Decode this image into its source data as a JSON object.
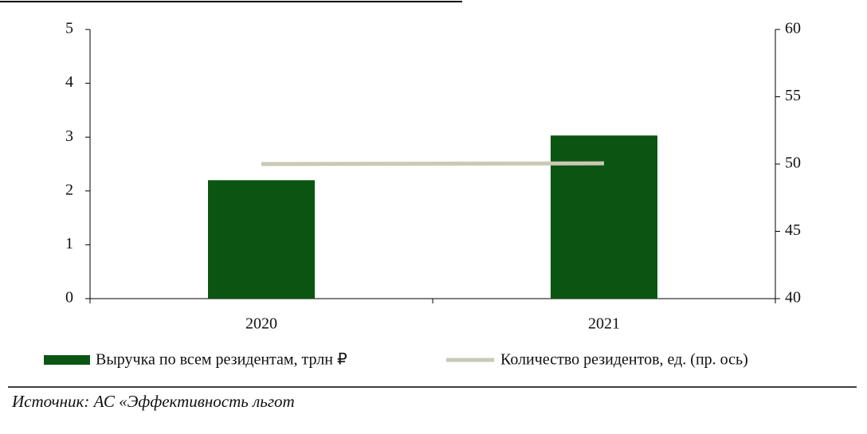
{
  "chart_data": {
    "type": "bar",
    "categories": [
      "2020",
      "2021"
    ],
    "series": [
      {
        "name": "Выручка по всем резидентам, трлн ₽",
        "color": "#0b5512",
        "values": [
          2.2,
          3.03
        ],
        "kind": "bar"
      },
      {
        "name": "Количество резидентов, ед. (пр. ось)",
        "color": "#c9c9b5",
        "values": [
          50,
          50.05
        ],
        "kind": "line",
        "axis": "y2"
      }
    ],
    "ylim": [
      0,
      5
    ],
    "yticks": [
      0,
      1,
      2,
      3,
      4,
      5
    ],
    "y2lim": [
      40,
      60
    ],
    "y2ticks": [
      40,
      45,
      50,
      55,
      60
    ],
    "source": "Источник: АС «Эффективность льгот"
  }
}
